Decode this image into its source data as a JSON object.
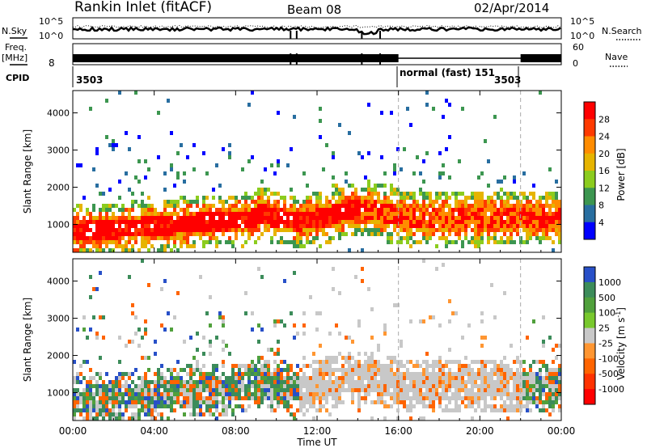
{
  "header": {
    "title": "Rankin Inlet (fitACF)",
    "beam": "Beam 08",
    "date": "02/Apr/2014"
  },
  "strip_labels": {
    "nsky": "N.Sky",
    "freq_line1": "Freq.",
    "freq_line2": "[MHz]",
    "cpid": "CPID",
    "nsearch": "N.Search",
    "nave": "Nave"
  },
  "strip_ticks": {
    "noise_high": "10^5",
    "noise_low": "10^0",
    "freq_value": "8",
    "nave_high": "60",
    "nave_low": "0"
  },
  "cpid_labels": {
    "left": "3503",
    "mode": "normal (fast) 151",
    "right": "3503"
  },
  "chart_data": [
    {
      "type": "heatmap",
      "name": "power",
      "title": "",
      "ylabel": "Slant Range [km]",
      "xlabel": "",
      "ylim": [
        250,
        4600
      ],
      "yticks": [
        "1000",
        "2000",
        "3000",
        "4000"
      ],
      "colorbar_label": "Power [dB]",
      "colorbar_ticks": [
        "28",
        "24",
        "20",
        "16",
        "12",
        "8",
        "4"
      ],
      "colors": [
        "#ff0000",
        "#ff3a00",
        "#ff8c00",
        "#e6b400",
        "#8ccc1e",
        "#3c9650",
        "#286ea0",
        "#0000ff"
      ]
    },
    {
      "type": "heatmap",
      "name": "velocity",
      "title": "",
      "ylabel": "Slant Range [km]",
      "xlabel": "Time UT",
      "ylim": [
        250,
        4600
      ],
      "yticks": [
        "1000",
        "2000",
        "3000",
        "4000"
      ],
      "xticks": [
        "00:00",
        "04:00",
        "08:00",
        "12:00",
        "16:00",
        "20:00",
        "00:00"
      ],
      "colorbar_label": "Velocity [m s",
      "colorbar_sup": "-1",
      "colorbar_label_end": "]",
      "colorbar_ticks": [
        "1000",
        "500",
        "100",
        "25",
        "-25",
        "-100",
        "-500",
        "-1000"
      ],
      "colors": [
        "#2850c8",
        "#3c8c5a",
        "#50a03c",
        "#78c82d",
        "#c8c8c8",
        "#ff9632",
        "#ff6400",
        "#ff3200",
        "#ff0000"
      ]
    }
  ]
}
